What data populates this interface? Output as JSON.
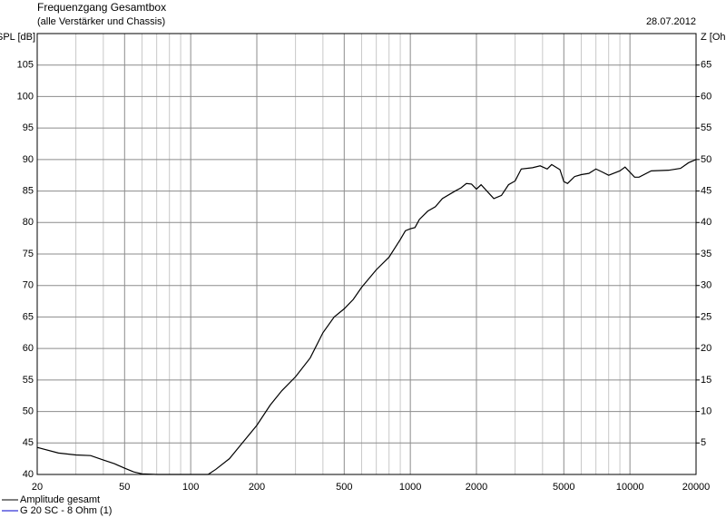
{
  "chart_data": {
    "type": "line",
    "title": "Frequenzgang Gesamtbox",
    "subtitle": "(alle Verstärker und Chassis)",
    "date": "28.07.2012",
    "ylabel": "SPL [dB]",
    "y2label": "Z [Ohm]",
    "xscale": "log",
    "grid": true,
    "xlim": [
      20,
      20000
    ],
    "xticks": [
      20,
      50,
      100,
      200,
      500,
      1000,
      2000,
      5000,
      10000,
      20000
    ],
    "xminorticks": [
      30,
      40,
      60,
      70,
      80,
      90,
      300,
      400,
      600,
      700,
      800,
      900,
      3000,
      4000,
      6000,
      7000,
      8000,
      9000
    ],
    "ylim": [
      40,
      110
    ],
    "yticks": [
      40,
      45,
      50,
      55,
      60,
      65,
      70,
      75,
      80,
      85,
      90,
      95,
      100,
      105
    ],
    "y2lim": [
      0,
      70
    ],
    "y2ticks": [
      5,
      10,
      15,
      20,
      25,
      30,
      35,
      40,
      45,
      50,
      55,
      60,
      65
    ],
    "x": [
      20,
      25,
      30,
      35,
      40,
      45,
      50,
      55,
      60,
      70,
      80,
      100,
      120,
      130,
      150,
      170,
      200,
      230,
      260,
      300,
      350,
      400,
      450,
      500,
      550,
      600,
      700,
      800,
      900,
      950,
      1000,
      1050,
      1100,
      1200,
      1300,
      1400,
      1600,
      1700,
      1800,
      1900,
      2000,
      2100,
      2300,
      2400,
      2600,
      2800,
      3000,
      3200,
      3600,
      3900,
      4200,
      4400,
      4800,
      5000,
      5200,
      5600,
      6000,
      6500,
      7000,
      7500,
      8000,
      9000,
      9500,
      10500,
      11000,
      12500,
      15000,
      17000,
      18500,
      20000
    ],
    "series": [
      {
        "name": "Amplitude gesamt",
        "color": "#000000",
        "values": [
          44.3,
          43.4,
          43.1,
          43.0,
          42.3,
          41.7,
          41.0,
          40.4,
          40.1,
          40.0,
          40.0,
          40.0,
          40.0,
          40.8,
          42.5,
          44.8,
          47.8,
          51,
          53.3,
          55.5,
          58.5,
          62.5,
          65,
          66.3,
          67.8,
          69.7,
          72.5,
          74.5,
          77.3,
          78.7,
          79,
          79.2,
          80.5,
          81.8,
          82.5,
          83.8,
          85.0,
          85.5,
          86.2,
          86.1,
          85.3,
          86.0,
          84.5,
          83.8,
          84.3,
          86.0,
          86.6,
          88.5,
          88.7,
          89.0,
          88.5,
          89.2,
          88.4,
          86.5,
          86.2,
          87.3,
          87.6,
          87.8,
          88.5,
          88.0,
          87.5,
          88.2,
          88.8,
          87.2,
          87.2,
          88.2,
          88.3,
          88.6,
          89.5,
          90.0
        ]
      },
      {
        "name": "G 20 SC - 8 Ohm (1)",
        "color": "#0000cc",
        "axis": "y2",
        "values": [
          null,
          null,
          null,
          null,
          null,
          null,
          null,
          null,
          null,
          null,
          null,
          null,
          null,
          null,
          null,
          null,
          null,
          null,
          null,
          null,
          null,
          null,
          null,
          null,
          null,
          null,
          null,
          null,
          null,
          null,
          null,
          null,
          null,
          null,
          null,
          null,
          null,
          null,
          null,
          null,
          null,
          null,
          null,
          null,
          null,
          null,
          null,
          null,
          null,
          null,
          null,
          null,
          null,
          null,
          null,
          null,
          null,
          null,
          null,
          null,
          null,
          null,
          null,
          null,
          null,
          null,
          null,
          null,
          null,
          null
        ]
      }
    ]
  }
}
